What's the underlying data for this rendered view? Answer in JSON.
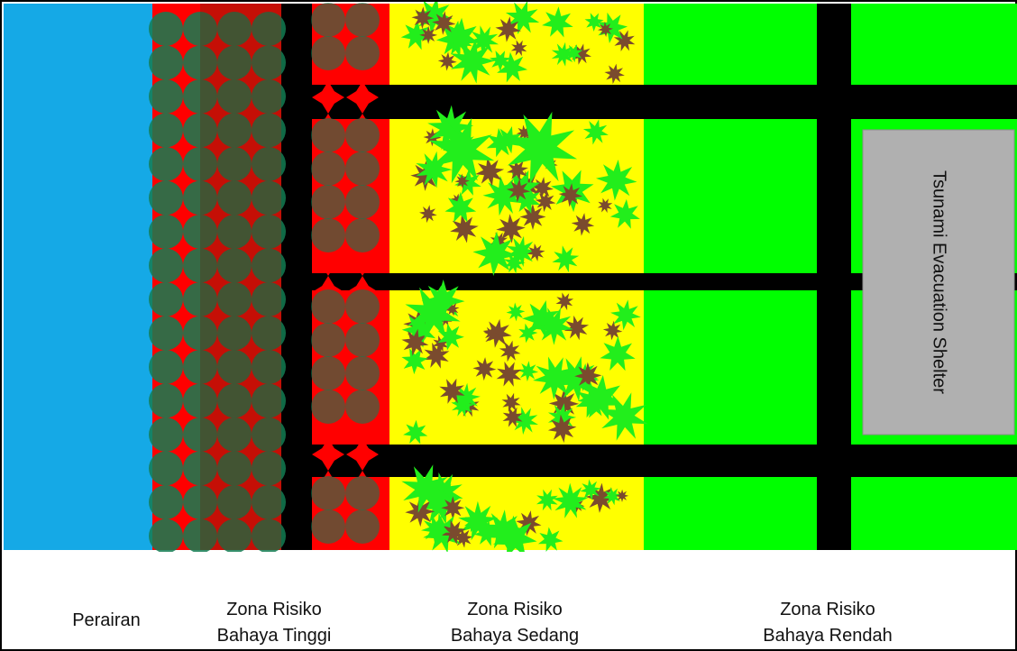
{
  "colors": {
    "water": "#15a9e6",
    "high_risk": "#ff0000",
    "medium_risk": "#ffff00",
    "low_risk": "#00ff00",
    "road": "#000000",
    "mangrove": "#137c52",
    "shelter": "#b0b0b0",
    "tree_green": "#22ee1c",
    "tree_brown": "#7a4b2e"
  },
  "icons": {
    "mangrove": "circle-tree-icon",
    "settlement": "star-tree-icon"
  },
  "labels": {
    "perairan": "Perairan",
    "tinggi_line1": "Zona Risiko",
    "tinggi_line2": "Bahaya Tinggi",
    "sedang_line1": "Zona Risiko",
    "sedang_line2": "Bahaya Sedang",
    "rendah_line1": "Zona Risiko",
    "rendah_line2": "Bahaya Rendah",
    "shelter": "Tsunami Evacuation Shelter"
  }
}
